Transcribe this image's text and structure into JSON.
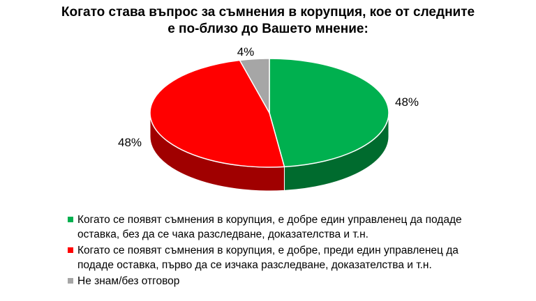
{
  "chart_data": {
    "type": "pie",
    "title_lines": [
      "Когато става въпрос за съмнения в корупция, кое от следните",
      "е по-близо до Вашето мнение:"
    ],
    "slices": [
      {
        "value": 48,
        "label": "48%",
        "color": "#00b04f",
        "side_color": "#006b2e",
        "legend_lines": [
          "Когато се появят съмнения в корупция, е добре един управленец да подаде",
          "оставка, без да се чака разследване, доказателства и т.н."
        ]
      },
      {
        "value": 48,
        "label": "48%",
        "color": "#ff0000",
        "side_color": "#a00000",
        "legend_lines": [
          "Когато се появят съмнения в корупция, е добре, преди един управленец да",
          "подаде оставка, първо да се изчака разследване, доказателства и т.н."
        ]
      },
      {
        "value": 4,
        "label": "4%",
        "color": "#a6a6a6",
        "side_color": "#6e6e6e",
        "legend_lines": [
          "Не знам/без отговор"
        ]
      }
    ],
    "legend_position": "bottom",
    "style": "3d-pie"
  }
}
